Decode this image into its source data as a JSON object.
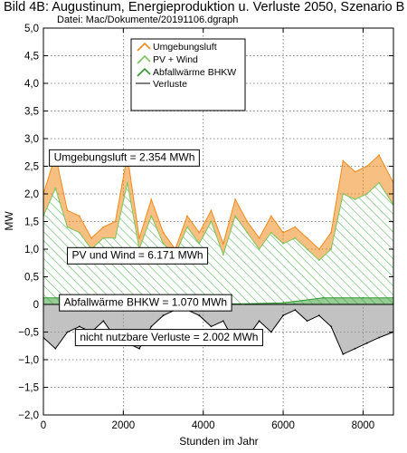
{
  "header": {
    "title": "Bild 4B: Augustinum, Energieproduktion u. Verluste 2050, Szenario B",
    "subtitle": "Datei: Mac/Dokumente/20191106.dgraph"
  },
  "colors": {
    "umgebungsluft": "#f08a1c",
    "pv_wind": "#7cc45a",
    "bhkw": "#2f9a2f",
    "verluste": "#000000",
    "grid": "#555555"
  },
  "chart_data": {
    "type": "area",
    "xlabel": "Stunden im Jahr",
    "ylabel": "MW",
    "xlim": [
      0,
      8760
    ],
    "ylim": [
      -2.0,
      5.0
    ],
    "xticks": [
      0,
      2000,
      4000,
      6000,
      8000
    ],
    "xtick_labels": [
      "0",
      "2000",
      "4000",
      "6000",
      "8000"
    ],
    "yticks": [
      -2.0,
      -1.5,
      -1.0,
      -0.5,
      0,
      0.5,
      1.0,
      1.5,
      2.0,
      2.5,
      3.0,
      3.5,
      4.0,
      4.5,
      5.0
    ],
    "ytick_labels": [
      "−2,0",
      "−1,5",
      "−1,0",
      "−0,5",
      "0",
      "0,5",
      "1,0",
      "1,5",
      "2,0",
      "2,5",
      "3,0",
      "3,5",
      "4,0",
      "4,5",
      "5,0"
    ],
    "grid": true,
    "legend_position": "top-center",
    "series": [
      {
        "name": "Umgebungsluft",
        "x": [
          0,
          300,
          600,
          900,
          1200,
          1500,
          1800,
          2100,
          2400,
          2700,
          3000,
          3300,
          3600,
          3900,
          4200,
          4500,
          4800,
          5100,
          5400,
          5700,
          6000,
          6300,
          6600,
          6900,
          7200,
          7500,
          7800,
          8100,
          8400,
          8760
        ],
        "values": [
          2.0,
          2.7,
          1.7,
          1.6,
          1.2,
          1.4,
          1.5,
          2.7,
          1.2,
          1.9,
          1.3,
          1.0,
          1.6,
          1.3,
          1.7,
          1.1,
          1.9,
          1.5,
          1.2,
          1.6,
          1.3,
          1.4,
          1.2,
          1.0,
          1.3,
          2.6,
          2.4,
          2.5,
          2.7,
          2.2
        ]
      },
      {
        "name": "PV + Wind",
        "x": [
          0,
          300,
          600,
          900,
          1200,
          1500,
          1800,
          2100,
          2400,
          2700,
          3000,
          3300,
          3600,
          3900,
          4200,
          4500,
          4800,
          5100,
          5400,
          5700,
          6000,
          6300,
          6600,
          6900,
          7200,
          7500,
          7800,
          8100,
          8400,
          8760
        ],
        "values": [
          1.6,
          2.1,
          1.4,
          1.3,
          1.0,
          1.2,
          1.2,
          2.2,
          1.0,
          1.6,
          1.1,
          0.9,
          1.4,
          1.1,
          1.5,
          0.9,
          1.6,
          1.3,
          1.0,
          1.3,
          1.1,
          1.2,
          1.0,
          0.8,
          1.0,
          2.0,
          1.9,
          2.0,
          2.2,
          1.8
        ]
      },
      {
        "name": "Abfallwärme BHKW",
        "x": [
          0,
          1000,
          2000,
          3000,
          4000,
          5000,
          6000,
          7000,
          8000,
          8760
        ],
        "values": [
          0.12,
          0.12,
          0.12,
          0.1,
          0.02,
          0.01,
          0.03,
          0.12,
          0.12,
          0.12
        ]
      },
      {
        "name": "Verluste",
        "x": [
          0,
          300,
          600,
          900,
          1200,
          1500,
          1800,
          2100,
          2400,
          2700,
          3000,
          3300,
          3600,
          3900,
          4200,
          4500,
          4800,
          5100,
          5400,
          5700,
          6000,
          6300,
          6600,
          6900,
          7200,
          7500,
          7800,
          8100,
          8400,
          8760
        ],
        "values": [
          -0.6,
          -0.8,
          -0.5,
          -0.4,
          -0.5,
          -0.3,
          -0.6,
          -0.7,
          -0.8,
          -0.4,
          -0.2,
          -0.1,
          -0.1,
          -0.2,
          -0.4,
          -0.3,
          -0.7,
          -0.6,
          -0.3,
          -0.5,
          -0.2,
          -0.1,
          -0.3,
          -0.2,
          -0.4,
          -0.9,
          -0.8,
          -0.7,
          -0.6,
          -0.5
        ]
      }
    ],
    "annotations": [
      {
        "text": "Umgebungsluft = 2.354 MWh",
        "x": 150,
        "y": 2.65
      },
      {
        "text": "PV und Wind = 6.171 MWh",
        "x": 600,
        "y": 0.88
      },
      {
        "text": "Abfallwärme BHKW = 1.070 MWh",
        "x": 400,
        "y": 0.03
      },
      {
        "text": "nicht nutzbare Verluste = 2.002 MWh",
        "x": 800,
        "y": -0.6
      }
    ]
  }
}
